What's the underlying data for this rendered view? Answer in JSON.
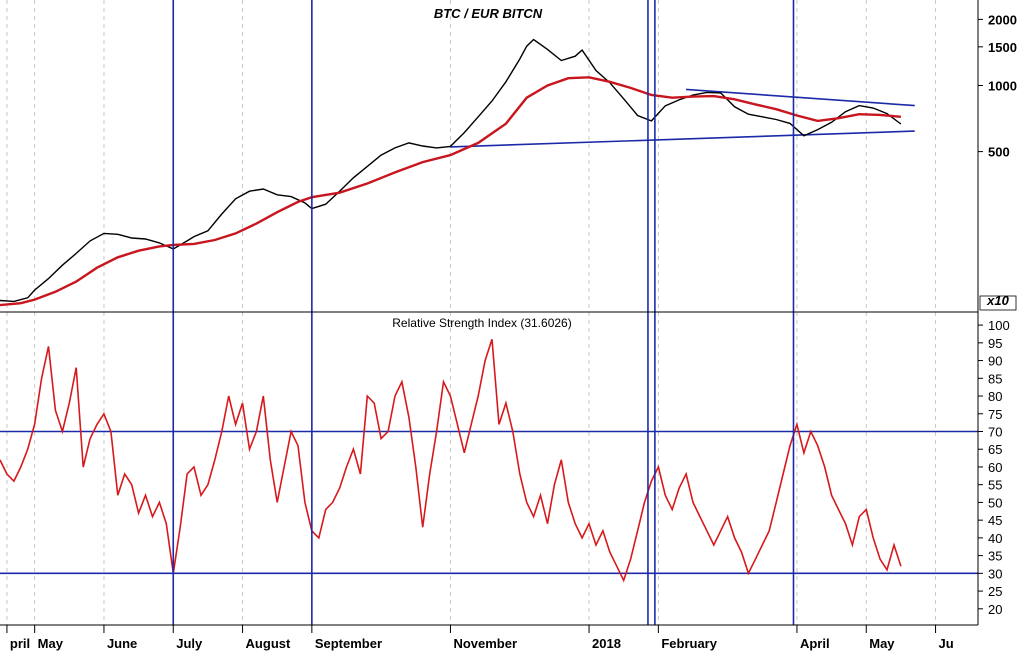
{
  "chart_data": [
    {
      "type": "candlestick-line",
      "title": "BTC / EUR BITCN",
      "y_scale": "log",
      "ylim": [
        95,
        2400
      ],
      "y_ticks": [
        2000,
        1500,
        1000,
        500
      ],
      "multiplier_label": "x10",
      "months": [
        {
          "label": "pril",
          "x": 4.6
        },
        {
          "label": "May",
          "x": 5
        },
        {
          "label": "June",
          "x": 6
        },
        {
          "label": "July",
          "x": 7
        },
        {
          "label": "August",
          "x": 8
        },
        {
          "label": "September",
          "x": 9
        },
        {
          "label": "November",
          "x": 11
        },
        {
          "label": "2018",
          "x": 13
        },
        {
          "label": "February",
          "x": 14
        },
        {
          "label": "April",
          "x": 16
        },
        {
          "label": "May",
          "x": 17
        },
        {
          "label": "Ju",
          "x": 18
        }
      ],
      "price": {
        "color": "#000000",
        "x": [
          4.5,
          4.7,
          4.9,
          5.0,
          5.2,
          5.4,
          5.6,
          5.8,
          6.0,
          6.2,
          6.4,
          6.6,
          6.8,
          7.0,
          7.2,
          7.3,
          7.5,
          7.7,
          7.9,
          8.1,
          8.3,
          8.5,
          8.7,
          8.9,
          9.0,
          9.2,
          9.4,
          9.6,
          9.8,
          10.0,
          10.2,
          10.4,
          10.6,
          10.8,
          11.0,
          11.2,
          11.4,
          11.6,
          11.8,
          12.0,
          12.1,
          12.2,
          12.4,
          12.6,
          12.8,
          12.9,
          13.1,
          13.3,
          13.5,
          13.7,
          13.9,
          14.1,
          14.3,
          14.5,
          14.7,
          14.9,
          15.1,
          15.3,
          15.5,
          15.7,
          15.9,
          16.1,
          16.3,
          16.5,
          16.7,
          16.9,
          17.1,
          17.3,
          17.5
        ],
        "y": [
          105,
          104,
          108,
          117,
          132,
          152,
          172,
          196,
          212,
          210,
          202,
          200,
          192,
          180,
          196,
          205,
          218,
          260,
          305,
          330,
          338,
          318,
          312,
          292,
          275,
          288,
          330,
          380,
          428,
          482,
          520,
          548,
          530,
          520,
          528,
          610,
          720,
          850,
          1040,
          1320,
          1510,
          1620,
          1460,
          1300,
          1360,
          1450,
          1170,
          1030,
          870,
          730,
          690,
          808,
          860,
          905,
          930,
          925,
          800,
          740,
          720,
          700,
          672,
          590,
          630,
          680,
          760,
          810,
          790,
          745,
          668
        ]
      },
      "moving_average": {
        "color": "#c8161e",
        "x": [
          4.5,
          4.8,
          5.0,
          5.3,
          5.6,
          5.9,
          6.2,
          6.5,
          6.8,
          7.0,
          7.3,
          7.6,
          7.9,
          8.2,
          8.5,
          8.8,
          9.0,
          9.4,
          9.8,
          10.2,
          10.6,
          11.0,
          11.4,
          11.8,
          12.1,
          12.4,
          12.7,
          13.0,
          13.3,
          13.6,
          13.9,
          14.2,
          14.5,
          14.8,
          15.1,
          15.4,
          15.7,
          16.0,
          16.3,
          16.6,
          16.9,
          17.2,
          17.5
        ],
        "y": [
          100,
          102,
          106,
          115,
          128,
          148,
          165,
          177,
          185,
          188,
          190,
          198,
          212,
          235,
          265,
          295,
          310,
          325,
          358,
          402,
          448,
          482,
          548,
          670,
          880,
          1000,
          1080,
          1090,
          1040,
          975,
          905,
          880,
          890,
          895,
          865,
          820,
          780,
          730,
          690,
          710,
          740,
          735,
          720
        ]
      },
      "trendlines": [
        {
          "color": "#1c2aa8",
          "x": [
            14.4,
            17.7
          ],
          "y": [
            960,
            810
          ]
        },
        {
          "color": "#1c2aa8",
          "x": [
            11.0,
            17.7
          ],
          "y": [
            525,
            620
          ]
        }
      ]
    },
    {
      "type": "line",
      "title": "Relative Strength Index (31.6026)",
      "ylim": [
        16,
        102
      ],
      "y_ticks": [
        100,
        95,
        90,
        85,
        80,
        75,
        70,
        65,
        60,
        55,
        50,
        45,
        40,
        35,
        30,
        25,
        20
      ],
      "reference_lines": [
        70,
        30
      ],
      "series": [
        {
          "color": "#d7191c",
          "x": [
            4.5,
            4.6,
            4.7,
            4.8,
            4.9,
            5.0,
            5.1,
            5.2,
            5.3,
            5.4,
            5.5,
            5.6,
            5.7,
            5.8,
            5.9,
            6.0,
            6.1,
            6.2,
            6.3,
            6.4,
            6.5,
            6.6,
            6.7,
            6.8,
            6.9,
            7.0,
            7.1,
            7.2,
            7.3,
            7.4,
            7.5,
            7.6,
            7.7,
            7.8,
            7.9,
            8.0,
            8.1,
            8.2,
            8.3,
            8.4,
            8.5,
            8.6,
            8.7,
            8.8,
            8.9,
            9.0,
            9.1,
            9.2,
            9.3,
            9.4,
            9.5,
            9.6,
            9.7,
            9.8,
            9.9,
            10.0,
            10.1,
            10.2,
            10.3,
            10.4,
            10.5,
            10.6,
            10.7,
            10.8,
            10.9,
            11.0,
            11.1,
            11.2,
            11.3,
            11.4,
            11.5,
            11.6,
            11.7,
            11.8,
            11.9,
            12.0,
            12.1,
            12.2,
            12.3,
            12.4,
            12.5,
            12.6,
            12.7,
            12.8,
            12.9,
            13.0,
            13.1,
            13.2,
            13.3,
            13.4,
            13.5,
            13.6,
            13.7,
            13.8,
            13.9,
            14.0,
            14.1,
            14.2,
            14.3,
            14.4,
            14.5,
            14.6,
            14.7,
            14.8,
            14.9,
            15.0,
            15.1,
            15.2,
            15.3,
            15.4,
            15.5,
            15.6,
            15.7,
            15.8,
            15.9,
            16.0,
            16.1,
            16.2,
            16.3,
            16.4,
            16.5,
            16.6,
            16.7,
            16.8,
            16.9,
            17.0,
            17.1,
            17.2,
            17.3,
            17.4,
            17.5
          ],
          "y": [
            62,
            58,
            56,
            60,
            65,
            72,
            85,
            94,
            76,
            70,
            78,
            88,
            60,
            68,
            72,
            75,
            70,
            52,
            58,
            55,
            47,
            52,
            46,
            50,
            44,
            30,
            43,
            58,
            60,
            52,
            55,
            62,
            70,
            80,
            72,
            78,
            65,
            70,
            80,
            62,
            50,
            60,
            70,
            66,
            50,
            42,
            40,
            48,
            50,
            54,
            60,
            65,
            58,
            80,
            78,
            68,
            70,
            80,
            84,
            74,
            60,
            43,
            58,
            70,
            84,
            80,
            72,
            64,
            72,
            80,
            90,
            96,
            72,
            78,
            70,
            58,
            50,
            46,
            52,
            44,
            55,
            62,
            50,
            44,
            40,
            44,
            38,
            42,
            36,
            32,
            28,
            34,
            42,
            50,
            56,
            60,
            52,
            48,
            54,
            58,
            50,
            46,
            42,
            38,
            42,
            46,
            40,
            36,
            30,
            34,
            38,
            42,
            50,
            58,
            66,
            72,
            64,
            70,
            66,
            60,
            52,
            48,
            44,
            38,
            46,
            48,
            40,
            34,
            31,
            38,
            32
          ]
        }
      ]
    }
  ],
  "vertical_markers": [
    7.0,
    9.0,
    13.85,
    13.95,
    15.95
  ]
}
